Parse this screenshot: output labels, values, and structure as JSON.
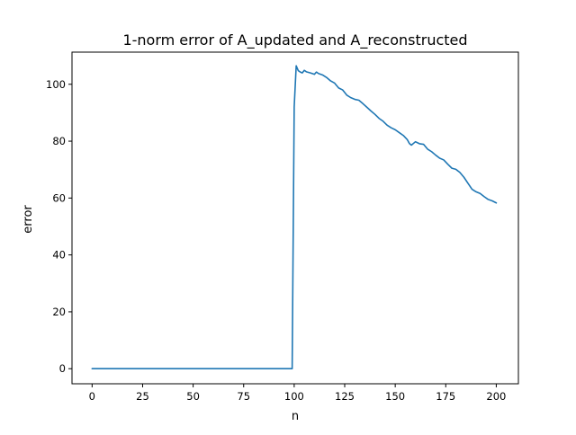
{
  "chart_data": {
    "type": "line",
    "title": "1-norm error of A_updated and A_reconstructed",
    "xlabel": "n",
    "ylabel": "error",
    "xlim": [
      -9.95,
      210.95
    ],
    "ylim": [
      -5.3,
      111.3
    ],
    "xticks": [
      0,
      25,
      50,
      75,
      100,
      125,
      150,
      175,
      200
    ],
    "yticks": [
      0,
      20,
      40,
      60,
      80,
      100
    ],
    "grid": false,
    "legend": "none",
    "series": [
      {
        "color": "#1f77b4",
        "x": [
          0,
          25,
          50,
          75,
          99,
          100,
          101,
          102,
          103,
          104,
          105,
          106,
          108,
          110,
          111,
          112,
          114,
          116,
          118,
          120,
          122,
          124,
          126,
          128,
          130,
          132,
          134,
          136,
          138,
          140,
          142,
          144,
          146,
          148,
          150,
          152,
          154,
          156,
          157,
          158,
          160,
          162,
          164,
          166,
          168,
          170,
          172,
          174,
          176,
          178,
          180,
          182,
          184,
          186,
          188,
          190,
          192,
          194,
          196,
          198,
          200
        ],
        "y": [
          0,
          0,
          0,
          0,
          0,
          92,
          106.5,
          104.8,
          104.3,
          104,
          104.9,
          104.4,
          104,
          103.5,
          104.3,
          103.8,
          103.3,
          102.4,
          101.2,
          100.4,
          98.7,
          98,
          96.2,
          95.3,
          94.7,
          94.4,
          93.2,
          91.9,
          90.6,
          89.4,
          88,
          87,
          85.6,
          84.7,
          84,
          83,
          82,
          80.5,
          79.2,
          78.6,
          79.8,
          79.1,
          78.9,
          77.2,
          76.3,
          75.1,
          74,
          73.4,
          71.9,
          70.5,
          70.1,
          69,
          67.3,
          65.2,
          63.1,
          62.2,
          61.6,
          60.5,
          59.5,
          59,
          58.3
        ]
      }
    ]
  }
}
